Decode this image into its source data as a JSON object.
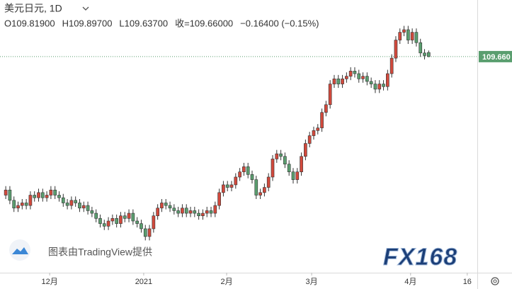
{
  "chart_data": {
    "type": "candlestick",
    "title": "美元日元, 1D",
    "ohlc_text": [
      "O109.81900",
      "H109.89700",
      "L109.63700",
      "收=109.66000",
      "−0.16400 (−0.15%)"
    ],
    "watermark": "图表由TradingView提供",
    "logo": "FX168",
    "up_color": "#d2493c",
    "down_color": "#5a9e6f",
    "last_price": {
      "value": 109.66,
      "label": "109.660"
    },
    "ylim": [
      101.3,
      111.85
    ],
    "xlim": [
      -1.4,
      114.5
    ],
    "xticks": [
      {
        "value": 10.7,
        "label": "12月"
      },
      {
        "value": 33.6,
        "label": "2021"
      },
      {
        "value": 53.8,
        "label": "2月"
      },
      {
        "value": 74.5,
        "label": "3月"
      },
      {
        "value": 98.6,
        "label": "4月"
      },
      {
        "value": 112.4,
        "label": "16"
      }
    ],
    "candles": [
      [
        104.3,
        104.65,
        104.15,
        104.5
      ],
      [
        104.5,
        104.65,
        103.95,
        104.1
      ],
      [
        104.1,
        104.25,
        103.65,
        103.8
      ],
      [
        103.8,
        104.05,
        103.65,
        103.9
      ],
      [
        103.9,
        104.15,
        103.75,
        104.0
      ],
      [
        104.0,
        104.15,
        103.75,
        103.9
      ],
      [
        103.9,
        104.45,
        103.75,
        104.3
      ],
      [
        104.3,
        104.45,
        104.05,
        104.2
      ],
      [
        104.2,
        104.55,
        104.05,
        104.4
      ],
      [
        104.4,
        104.55,
        104.05,
        104.2
      ],
      [
        104.2,
        104.45,
        104.05,
        104.3
      ],
      [
        104.3,
        104.65,
        104.15,
        104.5
      ],
      [
        104.5,
        104.65,
        104.15,
        104.3
      ],
      [
        104.3,
        104.45,
        104.05,
        104.2
      ],
      [
        104.2,
        104.35,
        103.85,
        104.0
      ],
      [
        104.0,
        104.15,
        103.75,
        103.9
      ],
      [
        103.9,
        104.25,
        103.75,
        104.1
      ],
      [
        104.1,
        104.25,
        103.85,
        104.0
      ],
      [
        104.0,
        104.15,
        103.65,
        103.8
      ],
      [
        103.8,
        104.05,
        103.65,
        103.9
      ],
      [
        103.9,
        104.05,
        103.55,
        103.7
      ],
      [
        103.7,
        103.85,
        103.45,
        103.6
      ],
      [
        103.6,
        103.75,
        103.25,
        103.4
      ],
      [
        103.4,
        103.55,
        103.05,
        103.2
      ],
      [
        103.2,
        103.35,
        102.95,
        103.1
      ],
      [
        103.1,
        103.45,
        102.95,
        103.3
      ],
      [
        103.3,
        103.55,
        103.15,
        103.4
      ],
      [
        103.4,
        103.55,
        103.05,
        103.2
      ],
      [
        103.2,
        103.65,
        103.05,
        103.5
      ],
      [
        103.5,
        103.65,
        103.25,
        103.4
      ],
      [
        103.4,
        103.75,
        103.25,
        103.6
      ],
      [
        103.6,
        103.75,
        103.15,
        103.3
      ],
      [
        103.3,
        103.45,
        103.05,
        103.2
      ],
      [
        103.2,
        103.35,
        102.85,
        103.0
      ],
      [
        103.0,
        103.15,
        102.55,
        102.7
      ],
      [
        102.7,
        103.15,
        102.55,
        103.0
      ],
      [
        103.0,
        103.65,
        102.85,
        103.5
      ],
      [
        103.5,
        103.95,
        103.35,
        103.8
      ],
      [
        103.8,
        104.15,
        103.65,
        104.0
      ],
      [
        104.0,
        104.15,
        103.75,
        103.9
      ],
      [
        103.9,
        104.05,
        103.65,
        103.8
      ],
      [
        103.8,
        103.95,
        103.55,
        103.7
      ],
      [
        103.7,
        103.85,
        103.45,
        103.6
      ],
      [
        103.6,
        103.95,
        103.45,
        103.8
      ],
      [
        103.8,
        103.95,
        103.45,
        103.6
      ],
      [
        103.6,
        103.85,
        103.45,
        103.7
      ],
      [
        103.7,
        103.85,
        103.45,
        103.6
      ],
      [
        103.6,
        103.75,
        103.35,
        103.5
      ],
      [
        103.5,
        103.75,
        103.35,
        103.6
      ],
      [
        103.6,
        103.85,
        103.45,
        103.7
      ],
      [
        103.7,
        103.85,
        103.45,
        103.6
      ],
      [
        103.6,
        104.05,
        103.45,
        103.9
      ],
      [
        103.9,
        104.55,
        103.75,
        104.4
      ],
      [
        104.4,
        104.85,
        104.25,
        104.7
      ],
      [
        104.7,
        104.85,
        104.45,
        104.6
      ],
      [
        104.6,
        104.85,
        104.45,
        104.7
      ],
      [
        104.7,
        105.15,
        104.55,
        105.0
      ],
      [
        105.0,
        105.35,
        104.85,
        105.2
      ],
      [
        105.2,
        105.55,
        105.05,
        105.4
      ],
      [
        105.4,
        105.55,
        104.95,
        105.1
      ],
      [
        105.1,
        105.25,
        104.75,
        104.9
      ],
      [
        104.9,
        105.05,
        104.15,
        104.3
      ],
      [
        104.3,
        104.55,
        104.15,
        104.4
      ],
      [
        104.4,
        104.75,
        104.25,
        104.6
      ],
      [
        104.6,
        105.15,
        104.45,
        105.0
      ],
      [
        105.0,
        105.85,
        104.85,
        105.7
      ],
      [
        105.7,
        106.05,
        105.55,
        105.9
      ],
      [
        105.9,
        106.05,
        105.65,
        105.8
      ],
      [
        105.8,
        105.95,
        105.35,
        105.5
      ],
      [
        105.5,
        105.65,
        105.05,
        105.2
      ],
      [
        105.2,
        105.35,
        104.75,
        104.9
      ],
      [
        104.9,
        105.35,
        104.75,
        105.2
      ],
      [
        105.2,
        105.95,
        105.05,
        105.8
      ],
      [
        105.8,
        106.45,
        105.65,
        106.3
      ],
      [
        106.3,
        106.75,
        106.15,
        106.6
      ],
      [
        106.6,
        106.95,
        106.45,
        106.8
      ],
      [
        106.8,
        107.05,
        106.65,
        106.9
      ],
      [
        106.9,
        107.65,
        106.75,
        107.5
      ],
      [
        107.5,
        107.95,
        107.35,
        107.8
      ],
      [
        107.8,
        108.75,
        107.65,
        108.6
      ],
      [
        108.6,
        108.95,
        108.45,
        108.8
      ],
      [
        108.8,
        108.95,
        108.45,
        108.6
      ],
      [
        108.6,
        108.95,
        108.45,
        108.8
      ],
      [
        108.8,
        109.05,
        108.65,
        108.9
      ],
      [
        108.9,
        109.25,
        108.75,
        109.1
      ],
      [
        109.1,
        109.25,
        108.85,
        109.0
      ],
      [
        109.0,
        109.15,
        108.65,
        108.8
      ],
      [
        108.8,
        109.05,
        108.65,
        108.9
      ],
      [
        108.9,
        109.05,
        108.55,
        108.7
      ],
      [
        108.7,
        108.85,
        108.45,
        108.6
      ],
      [
        108.6,
        108.75,
        108.25,
        108.4
      ],
      [
        108.4,
        108.75,
        108.25,
        108.6
      ],
      [
        108.6,
        108.75,
        108.35,
        108.5
      ],
      [
        108.5,
        109.15,
        108.35,
        109.0
      ],
      [
        109.0,
        109.75,
        108.85,
        109.6
      ],
      [
        109.6,
        110.45,
        109.45,
        110.3
      ],
      [
        110.3,
        110.75,
        110.15,
        110.6
      ],
      [
        110.6,
        110.85,
        110.45,
        110.7
      ],
      [
        110.7,
        110.85,
        110.15,
        110.3
      ],
      [
        110.3,
        110.75,
        110.15,
        110.6
      ],
      [
        110.6,
        110.75,
        110.05,
        110.2
      ],
      [
        110.2,
        110.35,
        109.65,
        109.8
      ],
      [
        109.8,
        109.95,
        109.55,
        109.7
      ],
      [
        109.819,
        109.897,
        109.637,
        109.66
      ]
    ]
  }
}
